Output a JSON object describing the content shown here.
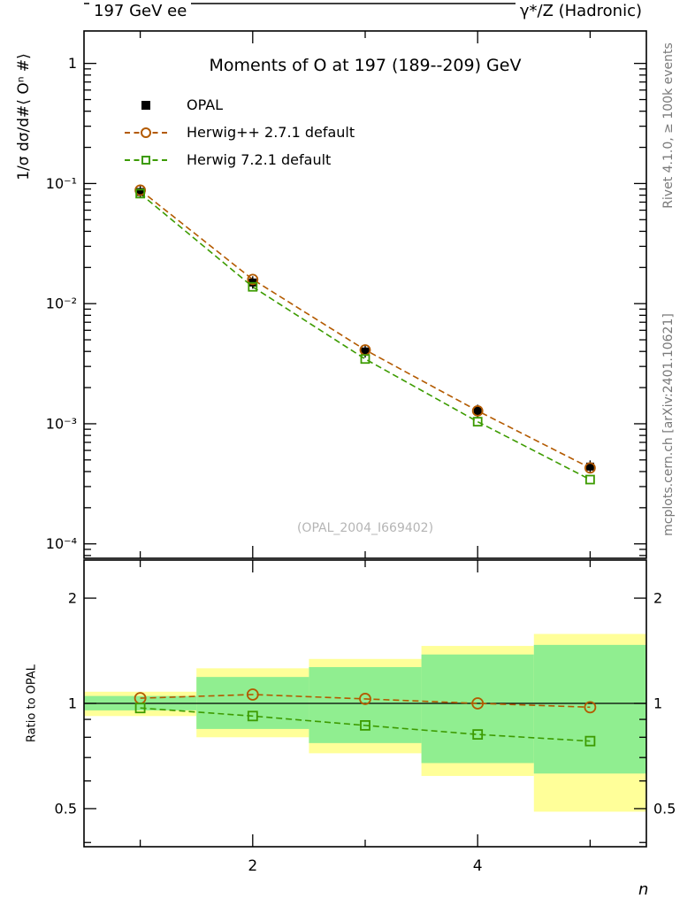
{
  "header": {
    "left": "197 GeV ee",
    "right": "γ*/Z (Hadronic)"
  },
  "side_notes": {
    "top_right": "Rivet 4.1.0, ≥ 100k events",
    "bottom_right": "mcplots.cern.ch [arXiv:2401.10621]"
  },
  "watermark": "(OPAL_2004_I669402)",
  "colors": {
    "opal": "#000000",
    "herwigpp": "#b35a00",
    "herwig7": "#3c9b00",
    "band_yellow": "#ffff99",
    "band_green": "#90ee90",
    "watermark_gray": "#b5b5b5",
    "side_note_gray": "#7a7a7a"
  },
  "chart_data": [
    {
      "type": "line",
      "title": "Moments of O at 197 (189--209) GeV",
      "ylabel": "1/σ  dσ/d#⟨ Oⁿ #⟩",
      "xlabel": "n",
      "yscale": "log",
      "x": [
        1,
        2,
        3,
        4,
        5
      ],
      "xlim": [
        0.5,
        5.5
      ],
      "ylim_log10": [
        -4.12,
        0.27
      ],
      "yticks": [
        {
          "v": 1,
          "label": "1"
        },
        {
          "v": 0.1,
          "label": "10⁻¹"
        },
        {
          "v": 0.01,
          "label": "10⁻²"
        },
        {
          "v": 0.001,
          "label": "10⁻³"
        },
        {
          "v": 0.0001,
          "label": "10⁻⁴"
        }
      ],
      "xticks_major": [
        {
          "v": 2,
          "label": "2"
        },
        {
          "v": 4,
          "label": "4"
        }
      ],
      "xticks_minor": [
        1,
        3,
        5
      ],
      "legend_position": "top-left",
      "series": [
        {
          "name": "OPAL",
          "marker": "filled-square",
          "color": "#000000",
          "values": [
            0.085,
            0.015,
            0.004,
            0.00128,
            0.00044
          ]
        },
        {
          "name": "Herwig++ 2.7.1 default",
          "marker": "open-circle",
          "color": "#b35a00",
          "line": "dashed",
          "values": [
            0.088,
            0.0159,
            0.00412,
            0.00128,
            0.000429
          ]
        },
        {
          "name": "Herwig 7.2.1 default",
          "marker": "open-square",
          "color": "#3c9b00",
          "line": "dashed",
          "values": [
            0.0824,
            0.0138,
            0.00346,
            0.00104,
            0.000343
          ]
        }
      ]
    },
    {
      "type": "ratio",
      "ylabel": "Ratio to OPAL",
      "yscale": "log",
      "x": [
        1,
        2,
        3,
        4,
        5
      ],
      "xlim": [
        0.5,
        5.5
      ],
      "ylim_log10": [
        -0.41,
        0.41
      ],
      "reference_line": 1,
      "yticks": [
        {
          "v": 2,
          "label": "2"
        },
        {
          "v": 1,
          "label": "1"
        },
        {
          "v": 0.5,
          "label": "0.5"
        }
      ],
      "yticks_minor": [
        0.4,
        0.6,
        0.7,
        0.8,
        0.9
      ],
      "xticks_major": [
        {
          "v": 2,
          "label": "2"
        },
        {
          "v": 4,
          "label": "4"
        }
      ],
      "xticks_minor": [
        1,
        3,
        5
      ],
      "bands": [
        {
          "x": [
            0.5,
            1.5
          ],
          "yellow": [
            0.92,
            1.08
          ],
          "green": [
            0.955,
            1.05
          ]
        },
        {
          "x": [
            1.5,
            2.5
          ],
          "yellow": [
            0.8,
            1.26
          ],
          "green": [
            0.845,
            1.19
          ]
        },
        {
          "x": [
            2.5,
            3.5
          ],
          "yellow": [
            0.72,
            1.34
          ],
          "green": [
            0.77,
            1.27
          ]
        },
        {
          "x": [
            3.5,
            4.5
          ],
          "yellow": [
            0.62,
            1.46
          ],
          "green": [
            0.675,
            1.38
          ]
        },
        {
          "x": [
            4.5,
            5.5
          ],
          "yellow": [
            0.49,
            1.58
          ],
          "green": [
            0.63,
            1.47
          ]
        }
      ],
      "series": [
        {
          "name": "Herwig++ 2.7.1 default",
          "marker": "open-circle",
          "color": "#b35a00",
          "values": [
            1.035,
            1.06,
            1.03,
            1.0,
            0.975
          ]
        },
        {
          "name": "Herwig 7.2.1 default",
          "marker": "open-square",
          "color": "#3c9b00",
          "values": [
            0.97,
            0.92,
            0.865,
            0.815,
            0.78
          ]
        }
      ]
    }
  ]
}
